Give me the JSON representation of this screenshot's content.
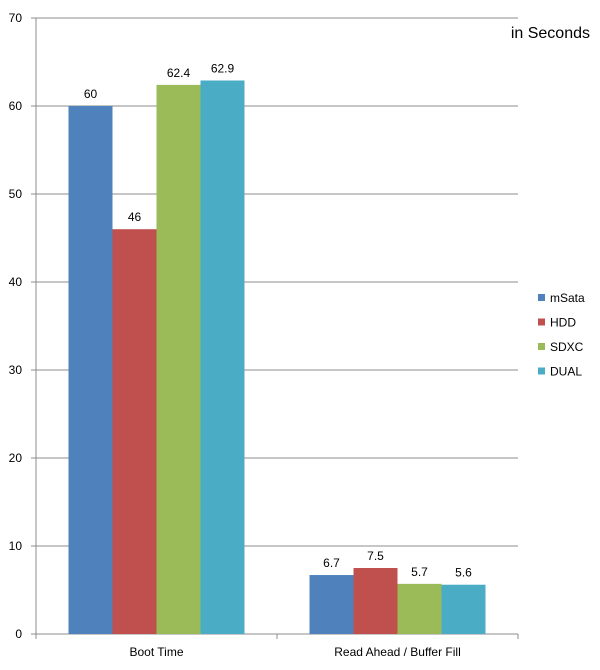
{
  "chart_data": {
    "type": "bar",
    "title": "",
    "unit_label": "in Seconds",
    "xlabel": "",
    "ylabel": "",
    "categories": [
      "Boot Time",
      "Read Ahead / Buffer Fill"
    ],
    "series": [
      {
        "name": "mSata",
        "values": [
          60,
          6.7
        ],
        "labels": [
          "60",
          "6.7"
        ],
        "color": "#4f81bd"
      },
      {
        "name": "HDD",
        "values": [
          46,
          7.5
        ],
        "labels": [
          "46",
          "7.5"
        ],
        "color": "#c0504d"
      },
      {
        "name": "SDXC",
        "values": [
          62.4,
          5.7
        ],
        "labels": [
          "62.4",
          "5.7"
        ],
        "color": "#9bbb59"
      },
      {
        "name": "DUAL",
        "values": [
          62.9,
          5.6
        ],
        "labels": [
          "62.9",
          "5.6"
        ],
        "color": "#4bacc6"
      }
    ],
    "ylim": [
      0,
      70
    ],
    "yticks": [
      0,
      10,
      20,
      30,
      40,
      50,
      60,
      70
    ],
    "grid": true,
    "legend_position": "right"
  }
}
